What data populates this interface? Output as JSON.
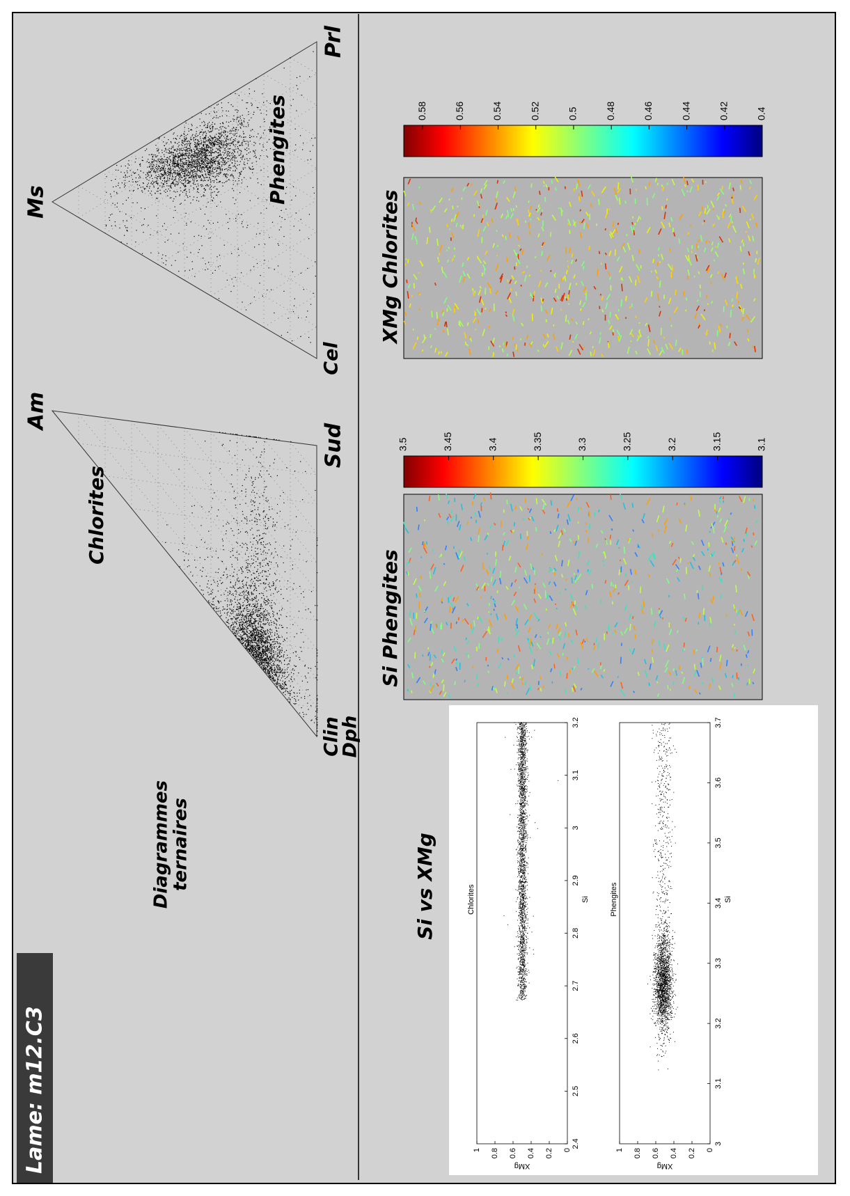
{
  "header": {
    "title": "Lame: m12.C3"
  },
  "ternary_section": {
    "title": [
      "Diagrammes",
      "ternaires"
    ]
  },
  "ternary_diagrams": [
    {
      "title": "Chlorites",
      "corners": {
        "top": "Am",
        "right": "Sud",
        "left": [
          "Clin",
          "Dph"
        ]
      }
    },
    {
      "title": "Phengites",
      "corners": {
        "top": "Ms",
        "right": "Prl",
        "left": [
          "Cel"
        ]
      }
    }
  ],
  "maps": [
    {
      "title": "Si Phengites",
      "colorbar": {
        "lim": [
          3.1,
          3.5
        ],
        "ticks": [
          3.5,
          3.45,
          3.4,
          3.35,
          3.3,
          3.25,
          3.2,
          3.15,
          3.1
        ]
      }
    },
    {
      "title": "XMg Chlorites",
      "colorbar": {
        "lim": [
          0.4,
          0.59
        ],
        "ticks": [
          0.58,
          0.56,
          0.54,
          0.52,
          0.5,
          0.48,
          0.46,
          0.44,
          0.42,
          0.4
        ]
      }
    }
  ],
  "scatter_section": {
    "title": "Si vs XMg",
    "plots": [
      {
        "type": "scatter",
        "title": "Chlorites",
        "xlabel": "Si",
        "ylabel": "XMg",
        "xlim": [
          2.4,
          3.2
        ],
        "xticks": [
          2.4,
          2.5,
          2.6,
          2.7,
          2.8,
          2.9,
          3,
          3.1,
          3.2
        ],
        "ylim": [
          0,
          1
        ],
        "yticks": [
          0,
          0.2,
          0.4,
          0.6,
          0.8,
          1
        ]
      },
      {
        "type": "scatter",
        "title": "Phengites",
        "xlabel": "Si",
        "ylabel": "XMg",
        "xlim": [
          3,
          3.7
        ],
        "xticks": [
          3,
          3.1,
          3.2,
          3.3,
          3.4,
          3.5,
          3.6,
          3.7
        ],
        "ylim": [
          0,
          1
        ],
        "yticks": [
          0,
          0.2,
          0.4,
          0.6,
          0.8,
          1
        ]
      }
    ]
  }
}
